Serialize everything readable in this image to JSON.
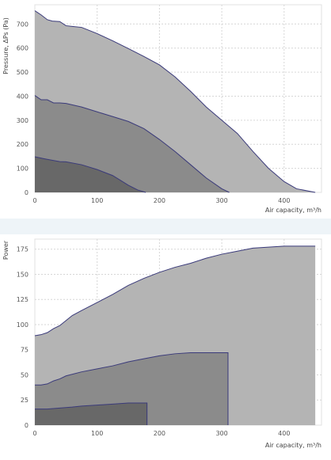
{
  "chart_data": [
    {
      "type": "area",
      "title": "",
      "xlabel": "Air capacity, m³/h",
      "ylabel": "Pressure, ΔPs (Pa)",
      "xlim": [
        0,
        460
      ],
      "ylim": [
        0,
        780
      ],
      "xticks": [
        "0",
        "100",
        "200",
        "300",
        "400"
      ],
      "yticks": [
        "0",
        "100",
        "200",
        "300",
        "400",
        "500",
        "600",
        "700"
      ],
      "grid": true,
      "legend": "none",
      "series": [
        {
          "color": "#b4b4b4",
          "points": [
            [
              0,
              755
            ],
            [
              10,
              738
            ],
            [
              20,
              718
            ],
            [
              28,
              712
            ],
            [
              40,
              710
            ],
            [
              50,
              693
            ],
            [
              60,
              690
            ],
            [
              75,
              686
            ],
            [
              100,
              660
            ],
            [
              125,
              630
            ],
            [
              150,
              598
            ],
            [
              175,
              565
            ],
            [
              200,
              530
            ],
            [
              225,
              480
            ],
            [
              250,
              420
            ],
            [
              275,
              355
            ],
            [
              300,
              300
            ],
            [
              325,
              245
            ],
            [
              350,
              170
            ],
            [
              375,
              100
            ],
            [
              400,
              45
            ],
            [
              420,
              15
            ],
            [
              450,
              0
            ]
          ]
        },
        {
          "color": "#8b8b8b",
          "points": [
            [
              0,
              403
            ],
            [
              10,
              385
            ],
            [
              20,
              385
            ],
            [
              30,
              372
            ],
            [
              40,
              372
            ],
            [
              50,
              370
            ],
            [
              75,
              355
            ],
            [
              100,
              335
            ],
            [
              125,
              315
            ],
            [
              150,
              295
            ],
            [
              175,
              265
            ],
            [
              200,
              220
            ],
            [
              225,
              170
            ],
            [
              250,
              115
            ],
            [
              275,
              60
            ],
            [
              300,
              15
            ],
            [
              312,
              0
            ]
          ]
        },
        {
          "color": "#686868",
          "points": [
            [
              0,
              148
            ],
            [
              15,
              140
            ],
            [
              25,
              135
            ],
            [
              40,
              128
            ],
            [
              50,
              127
            ],
            [
              75,
              115
            ],
            [
              100,
              95
            ],
            [
              125,
              70
            ],
            [
              150,
              30
            ],
            [
              165,
              10
            ],
            [
              178,
              0
            ]
          ]
        }
      ]
    },
    {
      "type": "area",
      "title": "",
      "xlabel": "Air capacity, m³/h",
      "ylabel": "Power",
      "xlim": [
        0,
        460
      ],
      "ylim": [
        0,
        185
      ],
      "xticks": [
        "0",
        "100",
        "200",
        "300",
        "400"
      ],
      "yticks": [
        "0",
        "25",
        "50",
        "75",
        "100",
        "125",
        "150",
        "175"
      ],
      "grid": true,
      "legend": "none",
      "series": [
        {
          "color": "#b4b4b4",
          "points": [
            [
              0,
              89
            ],
            [
              10,
              90
            ],
            [
              20,
              92
            ],
            [
              30,
              96
            ],
            [
              40,
              99
            ],
            [
              50,
              104
            ],
            [
              60,
              109
            ],
            [
              75,
              114
            ],
            [
              100,
              122
            ],
            [
              125,
              130
            ],
            [
              150,
              139
            ],
            [
              175,
              146
            ],
            [
              200,
              152
            ],
            [
              225,
              157
            ],
            [
              250,
              161
            ],
            [
              275,
              166
            ],
            [
              300,
              170
            ],
            [
              325,
              173
            ],
            [
              350,
              176
            ],
            [
              375,
              177
            ],
            [
              400,
              178
            ],
            [
              450,
              178
            ]
          ]
        },
        {
          "color": "#8b8b8b",
          "points": [
            [
              0,
              40
            ],
            [
              10,
              40
            ],
            [
              20,
              41
            ],
            [
              30,
              44
            ],
            [
              40,
              46
            ],
            [
              50,
              49
            ],
            [
              75,
              53
            ],
            [
              100,
              56
            ],
            [
              125,
              59
            ],
            [
              150,
              63
            ],
            [
              175,
              66
            ],
            [
              200,
              69
            ],
            [
              225,
              71
            ],
            [
              250,
              72
            ],
            [
              275,
              72
            ],
            [
              310,
              72
            ],
            [
              310,
              0
            ]
          ]
        },
        {
          "color": "#686868",
          "points": [
            [
              0,
              16
            ],
            [
              20,
              16
            ],
            [
              40,
              17
            ],
            [
              60,
              18
            ],
            [
              75,
              19
            ],
            [
              100,
              20
            ],
            [
              125,
              21
            ],
            [
              150,
              22
            ],
            [
              180,
              22
            ],
            [
              180,
              0
            ]
          ]
        }
      ]
    }
  ]
}
